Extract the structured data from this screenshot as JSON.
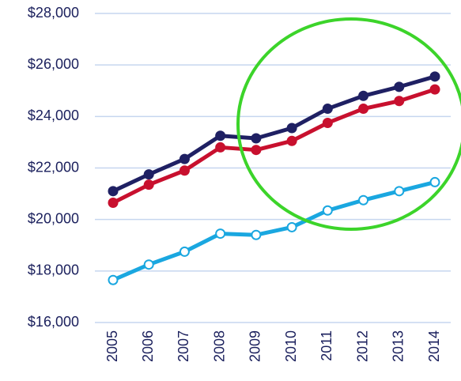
{
  "chart_data": {
    "type": "line",
    "categories": [
      "2005",
      "2006",
      "2007",
      "2008",
      "2009",
      "2010",
      "2011",
      "2012",
      "2013",
      "2014"
    ],
    "series": [
      {
        "color": "#1f2063",
        "marker": "filled",
        "values": [
          21100,
          21750,
          22350,
          23250,
          23150,
          23550,
          24300,
          24800,
          25150,
          25550
        ]
      },
      {
        "color": "#c8102e",
        "marker": "filled",
        "values": [
          20650,
          21350,
          21900,
          22800,
          22700,
          23050,
          23750,
          24300,
          24600,
          25050
        ]
      },
      {
        "color": "#1aa7e0",
        "marker": "hollow",
        "values": [
          17650,
          18250,
          18750,
          19450,
          19400,
          19700,
          20350,
          20750,
          21100,
          21450
        ]
      }
    ],
    "ylim": [
      16000,
      28000
    ],
    "yticks": [
      {
        "value": 16000,
        "label": "$16,000"
      },
      {
        "value": 18000,
        "label": "$18,000"
      },
      {
        "value": 20000,
        "label": "$20,000"
      },
      {
        "value": 22000,
        "label": "$22,000"
      },
      {
        "value": 24000,
        "label": "$24,000"
      },
      {
        "value": 26000,
        "label": "$26,000"
      },
      {
        "value": 28000,
        "label": "$28,000"
      }
    ],
    "grid": true
  }
}
